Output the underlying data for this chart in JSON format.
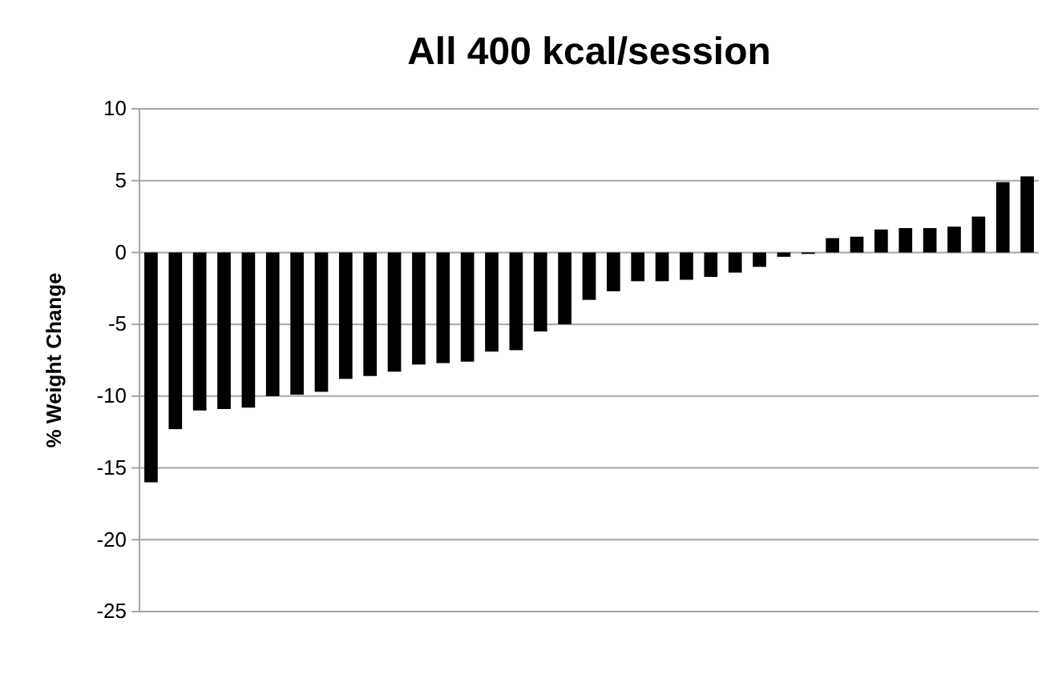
{
  "chart_data": {
    "type": "bar",
    "title": "All 400 kcal/session",
    "ylabel": "% Weight Change",
    "categories": [
      null,
      null,
      null,
      null,
      null,
      null,
      null,
      null,
      null,
      null,
      null,
      null,
      null,
      null,
      null,
      null,
      null,
      null,
      null,
      null,
      null,
      null,
      null,
      null,
      null,
      null,
      null,
      null,
      null,
      null,
      null,
      null,
      null,
      null,
      null,
      null,
      null
    ],
    "values": [
      -16,
      -12.3,
      -11,
      -10.9,
      -10.8,
      -10,
      -9.9,
      -9.7,
      -8.8,
      -8.6,
      -8.3,
      -7.8,
      -7.7,
      -7.6,
      -6.9,
      -6.8,
      -5.5,
      -5,
      -3.3,
      -2.7,
      -2,
      -2,
      -1.9,
      -1.7,
      -1.4,
      -1,
      -0.3,
      -0.1,
      1,
      1.1,
      1.6,
      1.7,
      1.7,
      1.8,
      2.5,
      4.9,
      5.3
    ],
    "color": "#000000",
    "ylim": [
      -25,
      10
    ],
    "yticks": [
      -25,
      -20,
      -15,
      -10,
      -5,
      0,
      5,
      10
    ],
    "grid": "y"
  }
}
